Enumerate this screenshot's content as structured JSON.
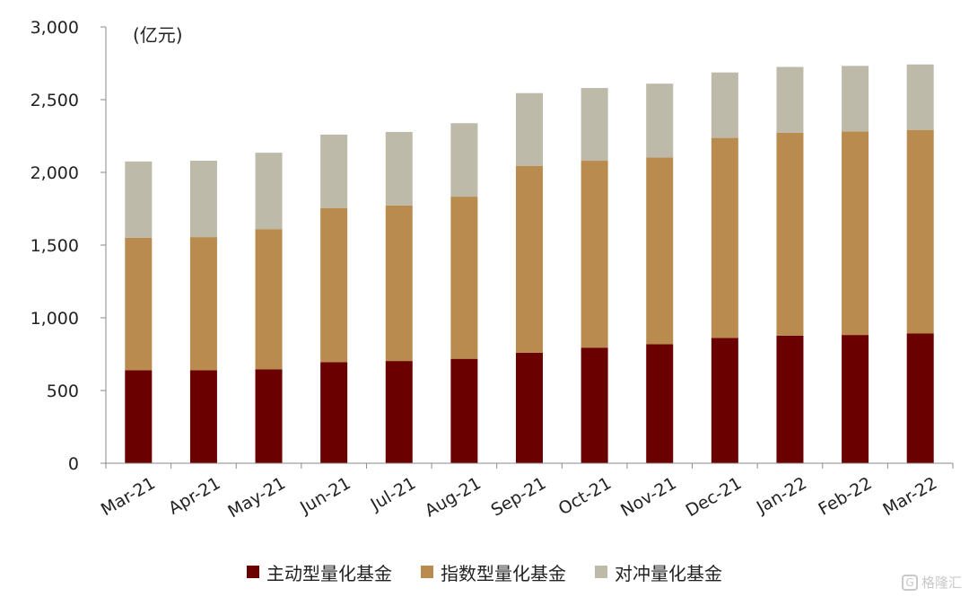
{
  "chart_data": {
    "type": "bar",
    "stacked": true,
    "unit_label": "(亿元)",
    "categories": [
      "Mar-21",
      "Apr-21",
      "May-21",
      "Jun-21",
      "Jul-21",
      "Aug-21",
      "Sep-21",
      "Oct-21",
      "Nov-21",
      "Dec-21",
      "Jan-22",
      "Feb-22",
      "Mar-22"
    ],
    "series": [
      {
        "name": "主动型量化基金",
        "color": "#6b0000",
        "values": [
          640,
          640,
          645,
          695,
          703,
          718,
          760,
          795,
          818,
          862,
          877,
          882,
          892
        ]
      },
      {
        "name": "指数型量化基金",
        "color": "#b98b4e",
        "values": [
          910,
          915,
          965,
          1060,
          1070,
          1115,
          1285,
          1285,
          1285,
          1375,
          1395,
          1400,
          1400
        ]
      },
      {
        "name": "对冲量化基金",
        "color": "#bdbaaa",
        "values": [
          525,
          525,
          525,
          505,
          505,
          505,
          500,
          500,
          507,
          450,
          453,
          450,
          450
        ]
      }
    ],
    "ylim": [
      0,
      3000
    ],
    "yticks": [
      0,
      500,
      1000,
      1500,
      2000,
      2500,
      3000
    ],
    "ytick_labels": [
      "0",
      "500",
      "1,000",
      "1,500",
      "2,000",
      "2,500",
      "3,000"
    ],
    "xlabel": "",
    "ylabel": "",
    "grid": false,
    "legend_position": "bottom"
  },
  "watermark": {
    "text": "格隆汇"
  }
}
